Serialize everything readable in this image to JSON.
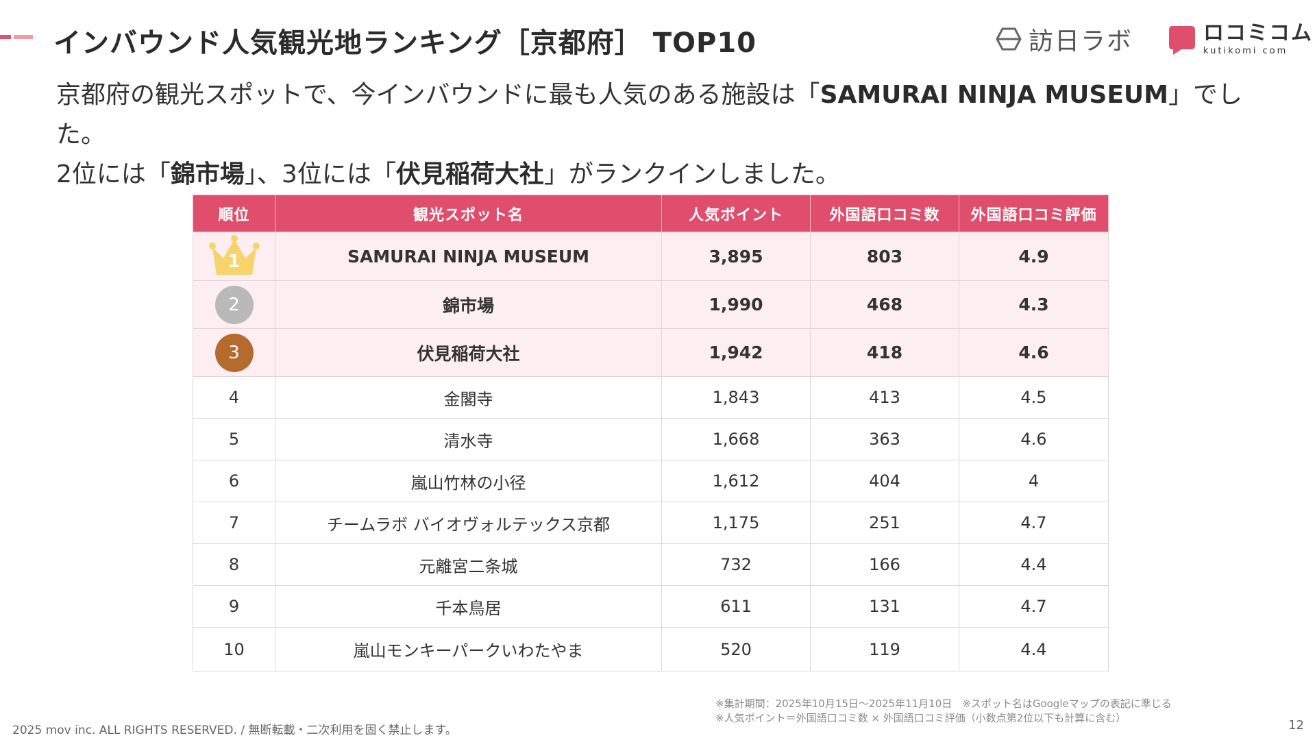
{
  "header": {
    "title": "インバウンド人気観光地ランキング［京都府］ TOP10",
    "logos": {
      "houni": "訪日ラボ",
      "kuchikomi_jp": "ロコミコム",
      "kuchikomi_en": "kutikomi com"
    }
  },
  "lead": {
    "p1_before": "京都府の観光スポットで、今インバウンドに最も人気のある施設は「",
    "p1_strong": "SAMURAI NINJA MUSEUM",
    "p1_after": "」でした。",
    "p2_a": "2位には「",
    "p2_strong1": "錦市場",
    "p2_b": "」、3位には「",
    "p2_strong2": "伏見稲荷大社",
    "p2_c": "」がランクインしました。"
  },
  "table": {
    "headers": [
      "順位",
      "観光スポット名",
      "人気ポイント",
      "外国語口コミ数",
      "外国語口コミ評価"
    ],
    "rows": [
      {
        "rank": "1",
        "name": "SAMURAI NINJA MUSEUM",
        "points": "3,895",
        "reviews": "803",
        "rating": "4.9"
      },
      {
        "rank": "2",
        "name": "錦市場",
        "points": "1,990",
        "reviews": "468",
        "rating": "4.3"
      },
      {
        "rank": "3",
        "name": "伏見稲荷大社",
        "points": "1,942",
        "reviews": "418",
        "rating": "4.6"
      },
      {
        "rank": "4",
        "name": "金閣寺",
        "points": "1,843",
        "reviews": "413",
        "rating": "4.5"
      },
      {
        "rank": "5",
        "name": "清水寺",
        "points": "1,668",
        "reviews": "363",
        "rating": "4.6"
      },
      {
        "rank": "6",
        "name": "嵐山竹林の小径",
        "points": "1,612",
        "reviews": "404",
        "rating": "4"
      },
      {
        "rank": "7",
        "name": "チームラボ バイオヴォルテックス京都",
        "points": "1,175",
        "reviews": "251",
        "rating": "4.7"
      },
      {
        "rank": "8",
        "name": "元離宮二条城",
        "points": "732",
        "reviews": "166",
        "rating": "4.4"
      },
      {
        "rank": "9",
        "name": "千本鳥居",
        "points": "611",
        "reviews": "131",
        "rating": "4.7"
      },
      {
        "rank": "10",
        "name": "嵐山モンキーパークいわたやま",
        "points": "520",
        "reviews": "119",
        "rating": "4.4"
      }
    ]
  },
  "notes": {
    "line1": "※集計期間：2025年10月15日〜2025年11月10日　※スポット名はGoogleマップの表記に準じる",
    "line2": "※人気ポイント＝外国語口コミ数 × 外国語口コミ評価（小数点第2位以下も計算に含む）"
  },
  "footer": {
    "copyright": "2025 mov inc. ALL RIGHTS RESERVED. / 無断転載・二次利用を固く禁止します。",
    "page_number": "12"
  },
  "colors": {
    "accent": "#e04e6e",
    "highlight_row": "#fdeef2",
    "gold": "#f7d36a",
    "silver": "#b9b9b9",
    "bronze": "#b56a2e"
  }
}
